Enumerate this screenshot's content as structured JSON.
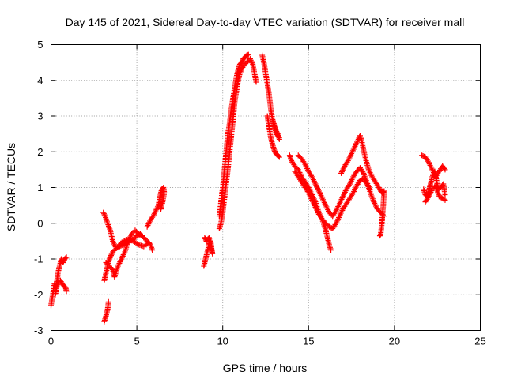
{
  "chart_data": {
    "type": "scatter",
    "title": "Day 145 of 2021, Sidereal Day-to-day VTEC variation (SDTVAR) for receiver mall",
    "xlabel": "GPS time / hours",
    "ylabel": "SDTVAR / TECUs",
    "xlim": [
      0,
      25
    ],
    "ylim": [
      -3,
      5
    ],
    "xticks": [
      0,
      5,
      10,
      15,
      20,
      25
    ],
    "yticks": [
      -3,
      -2,
      -1,
      0,
      1,
      2,
      3,
      4,
      5
    ],
    "grid": true,
    "marker": "plus",
    "color": "#ff0000",
    "series": [
      {
        "name": "SDTVAR",
        "segments": [
          [
            [
              0.0,
              -2.3
            ],
            [
              0.1,
              -2.0
            ],
            [
              0.2,
              -1.7
            ],
            [
              0.3,
              -1.8
            ],
            [
              0.4,
              -1.4
            ],
            [
              0.5,
              -1.2
            ],
            [
              0.6,
              -1.0
            ],
            [
              0.7,
              -1.1
            ],
            [
              0.8,
              -1.0
            ],
            [
              0.9,
              -0.95
            ]
          ],
          [
            [
              0.25,
              -2.0
            ],
            [
              0.35,
              -1.75
            ],
            [
              0.45,
              -1.6
            ],
            [
              0.55,
              -1.6
            ],
            [
              0.65,
              -1.7
            ],
            [
              0.75,
              -1.75
            ],
            [
              0.85,
              -1.8
            ],
            [
              0.9,
              -1.9
            ]
          ],
          [
            [
              3.1,
              -2.75
            ],
            [
              3.2,
              -2.6
            ],
            [
              3.3,
              -2.4
            ],
            [
              3.35,
              -2.2
            ]
          ],
          [
            [
              3.05,
              0.3
            ],
            [
              3.15,
              0.2
            ],
            [
              3.3,
              0.0
            ],
            [
              3.45,
              -0.2
            ],
            [
              3.6,
              -0.5
            ],
            [
              3.8,
              -0.7
            ],
            [
              4.0,
              -0.65
            ],
            [
              4.2,
              -0.6
            ],
            [
              4.4,
              -0.55
            ],
            [
              4.6,
              -0.5
            ],
            [
              4.8,
              -0.45
            ],
            [
              5.0,
              -0.35
            ],
            [
              5.2,
              -0.3
            ],
            [
              5.4,
              -0.4
            ],
            [
              5.6,
              -0.5
            ],
            [
              5.8,
              -0.6
            ],
            [
              5.9,
              -0.75
            ]
          ],
          [
            [
              3.1,
              -1.6
            ],
            [
              3.2,
              -1.4
            ],
            [
              3.3,
              -1.2
            ],
            [
              3.4,
              -1.0
            ],
            [
              3.5,
              -0.9
            ],
            [
              3.6,
              -0.8
            ],
            [
              3.8,
              -0.7
            ],
            [
              4.0,
              -0.6
            ],
            [
              4.2,
              -0.5
            ],
            [
              4.5,
              -0.45
            ],
            [
              4.8,
              -0.5
            ],
            [
              5.1,
              -0.6
            ],
            [
              5.4,
              -0.65
            ],
            [
              5.7,
              -0.55
            ]
          ],
          [
            [
              3.2,
              -1.1
            ],
            [
              3.4,
              -1.2
            ],
            [
              3.6,
              -1.3
            ],
            [
              3.7,
              -1.5
            ],
            [
              3.9,
              -1.2
            ],
            [
              4.1,
              -1.0
            ],
            [
              4.3,
              -0.8
            ],
            [
              4.5,
              -0.5
            ],
            [
              4.7,
              -0.3
            ],
            [
              4.9,
              -0.2
            ],
            [
              5.1,
              -0.3
            ],
            [
              5.3,
              -0.35
            ]
          ],
          [
            [
              5.6,
              -0.1
            ],
            [
              5.8,
              0.1
            ],
            [
              5.95,
              0.2
            ],
            [
              6.1,
              0.35
            ],
            [
              6.25,
              0.5
            ],
            [
              6.35,
              0.75
            ],
            [
              6.45,
              0.95
            ],
            [
              6.55,
              1.0
            ],
            [
              6.6,
              0.85
            ],
            [
              6.5,
              0.6
            ],
            [
              6.4,
              0.4
            ]
          ],
          [
            [
              8.9,
              -1.2
            ],
            [
              9.0,
              -1.0
            ],
            [
              9.1,
              -0.8
            ],
            [
              9.2,
              -0.6
            ],
            [
              9.3,
              -0.5
            ],
            [
              9.35,
              -0.7
            ],
            [
              9.4,
              -0.85
            ],
            [
              9.2,
              -0.4
            ],
            [
              9.05,
              -0.5
            ],
            [
              8.95,
              -0.4
            ]
          ],
          [
            [
              9.8,
              0.2
            ],
            [
              9.9,
              0.6
            ],
            [
              10.0,
              1.0
            ],
            [
              10.1,
              1.5
            ],
            [
              10.2,
              2.0
            ],
            [
              10.3,
              2.5
            ],
            [
              10.4,
              2.8
            ],
            [
              10.5,
              3.2
            ],
            [
              10.6,
              3.5
            ],
            [
              10.7,
              3.8
            ],
            [
              10.8,
              4.1
            ],
            [
              10.9,
              4.3
            ],
            [
              11.0,
              4.45
            ],
            [
              11.1,
              4.5
            ],
            [
              11.2,
              4.6
            ],
            [
              11.3,
              4.65
            ],
            [
              11.4,
              4.7
            ],
            [
              11.5,
              4.72
            ]
          ],
          [
            [
              9.8,
              -0.15
            ],
            [
              9.9,
              0.0
            ],
            [
              10.0,
              0.3
            ],
            [
              10.15,
              0.9
            ],
            [
              10.3,
              1.5
            ],
            [
              10.45,
              2.2
            ],
            [
              10.6,
              2.9
            ],
            [
              10.7,
              3.4
            ],
            [
              10.8,
              3.7
            ],
            [
              10.9,
              4.0
            ],
            [
              11.0,
              4.2
            ],
            [
              11.2,
              4.4
            ],
            [
              11.4,
              4.5
            ],
            [
              11.6,
              4.6
            ],
            [
              11.75,
              4.45
            ],
            [
              11.85,
              4.2
            ],
            [
              11.95,
              3.95
            ]
          ],
          [
            [
              12.3,
              4.7
            ],
            [
              12.4,
              4.5
            ],
            [
              12.5,
              4.2
            ],
            [
              12.6,
              3.9
            ],
            [
              12.7,
              3.6
            ],
            [
              12.8,
              3.2
            ],
            [
              12.9,
              2.9
            ],
            [
              13.0,
              2.7
            ],
            [
              13.1,
              2.55
            ],
            [
              13.2,
              2.45
            ],
            [
              13.3,
              2.4
            ]
          ],
          [
            [
              12.6,
              3.0
            ],
            [
              12.7,
              2.7
            ],
            [
              12.8,
              2.4
            ],
            [
              12.9,
              2.2
            ],
            [
              13.0,
              2.05
            ],
            [
              13.1,
              1.95
            ],
            [
              13.2,
              1.9
            ],
            [
              13.3,
              1.85
            ]
          ],
          [
            [
              12.9,
              2.9
            ],
            [
              13.0,
              2.75
            ],
            [
              13.1,
              2.6
            ],
            [
              13.2,
              2.5
            ],
            [
              13.3,
              2.35
            ]
          ],
          [
            [
              13.9,
              1.9
            ],
            [
              14.0,
              1.75
            ],
            [
              14.2,
              1.6
            ],
            [
              14.4,
              1.5
            ],
            [
              14.6,
              1.3
            ],
            [
              14.8,
              1.15
            ],
            [
              15.0,
              1.0
            ],
            [
              15.2,
              0.8
            ],
            [
              15.4,
              0.6
            ],
            [
              15.6,
              0.3
            ],
            [
              15.8,
              0.1
            ],
            [
              16.0,
              -0.2
            ],
            [
              16.1,
              -0.4
            ],
            [
              16.2,
              -0.6
            ],
            [
              16.3,
              -0.75
            ]
          ],
          [
            [
              14.2,
              1.45
            ],
            [
              14.4,
              1.3
            ],
            [
              14.6,
              1.15
            ],
            [
              14.8,
              1.0
            ],
            [
              15.0,
              0.85
            ],
            [
              15.2,
              0.65
            ],
            [
              15.4,
              0.45
            ],
            [
              15.6,
              0.25
            ],
            [
              15.8,
              0.1
            ],
            [
              16.0,
              0.0
            ],
            [
              16.2,
              -0.1
            ],
            [
              16.4,
              -0.15
            ],
            [
              16.6,
              0.0
            ],
            [
              16.8,
              0.2
            ],
            [
              17.0,
              0.4
            ],
            [
              17.2,
              0.55
            ],
            [
              17.4,
              0.7
            ],
            [
              17.6,
              0.85
            ],
            [
              17.8,
              1.05
            ],
            [
              18.0,
              1.2
            ],
            [
              18.2,
              1.25
            ],
            [
              18.4,
              1.1
            ],
            [
              18.6,
              0.95
            ]
          ],
          [
            [
              14.4,
              1.9
            ],
            [
              14.6,
              1.8
            ],
            [
              14.8,
              1.65
            ],
            [
              15.0,
              1.45
            ],
            [
              15.2,
              1.3
            ],
            [
              15.4,
              1.1
            ],
            [
              15.6,
              0.9
            ],
            [
              15.8,
              0.7
            ],
            [
              16.0,
              0.5
            ],
            [
              16.2,
              0.3
            ],
            [
              16.4,
              0.2
            ],
            [
              16.6,
              0.35
            ],
            [
              16.8,
              0.55
            ],
            [
              17.0,
              0.75
            ],
            [
              17.2,
              0.95
            ],
            [
              17.4,
              1.1
            ],
            [
              17.6,
              1.3
            ],
            [
              17.8,
              1.45
            ],
            [
              18.0,
              1.55
            ],
            [
              18.2,
              1.4
            ],
            [
              18.4,
              1.15
            ],
            [
              18.6,
              0.85
            ],
            [
              18.8,
              0.6
            ],
            [
              19.0,
              0.4
            ],
            [
              19.2,
              0.3
            ],
            [
              19.4,
              0.2
            ]
          ],
          [
            [
              16.9,
              1.4
            ],
            [
              17.1,
              1.6
            ],
            [
              17.3,
              1.75
            ],
            [
              17.5,
              1.95
            ],
            [
              17.7,
              2.15
            ],
            [
              17.9,
              2.35
            ],
            [
              18.0,
              2.45
            ],
            [
              18.1,
              2.3
            ],
            [
              18.2,
              2.05
            ],
            [
              18.35,
              1.75
            ],
            [
              18.5,
              1.5
            ],
            [
              18.7,
              1.3
            ],
            [
              18.9,
              1.15
            ],
            [
              19.1,
              1.0
            ],
            [
              19.2,
              0.9
            ],
            [
              19.3,
              0.85
            ],
            [
              19.4,
              0.9
            ],
            [
              19.35,
              0.5
            ],
            [
              19.3,
              0.2
            ],
            [
              19.25,
              -0.1
            ],
            [
              19.2,
              -0.3
            ],
            [
              19.15,
              -0.35
            ]
          ],
          [
            [
              21.7,
              0.95
            ],
            [
              21.8,
              0.8
            ],
            [
              21.9,
              0.75
            ],
            [
              22.0,
              0.9
            ],
            [
              22.1,
              1.1
            ],
            [
              22.2,
              1.3
            ],
            [
              22.35,
              1.45
            ],
            [
              22.45,
              1.2
            ],
            [
              22.55,
              0.95
            ],
            [
              22.7,
              1.0
            ],
            [
              22.85,
              1.1
            ],
            [
              22.95,
              0.8
            ]
          ],
          [
            [
              21.6,
              1.9
            ],
            [
              21.8,
              1.85
            ],
            [
              22.0,
              1.7
            ],
            [
              22.2,
              1.5
            ],
            [
              22.4,
              1.3
            ],
            [
              22.6,
              1.45
            ],
            [
              22.8,
              1.6
            ],
            [
              22.95,
              1.5
            ]
          ],
          [
            [
              21.8,
              0.6
            ],
            [
              22.0,
              0.75
            ],
            [
              22.2,
              0.95
            ],
            [
              22.4,
              1.05
            ],
            [
              22.6,
              0.75
            ],
            [
              22.8,
              0.7
            ],
            [
              22.95,
              0.65
            ]
          ]
        ]
      }
    ]
  }
}
